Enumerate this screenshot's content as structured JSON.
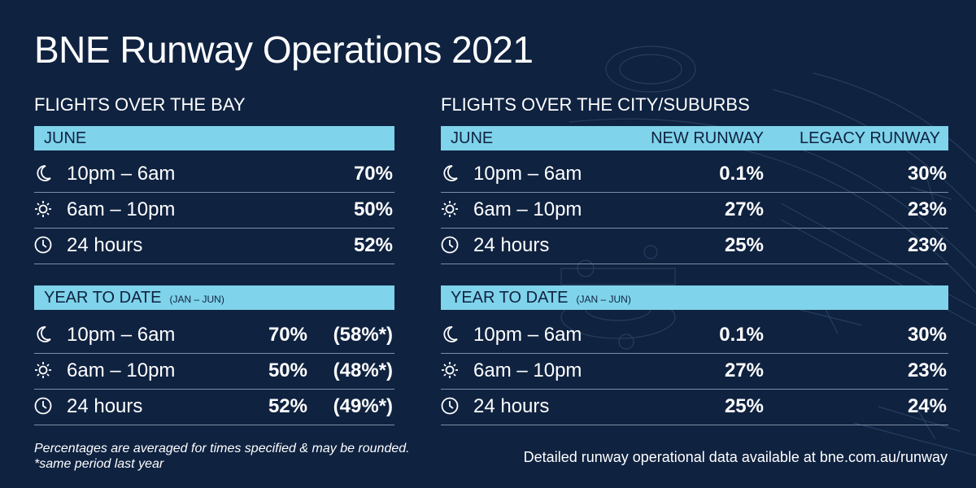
{
  "title": "BNE Runway Operations 2021",
  "bay": {
    "heading": "FLIGHTS OVER THE BAY",
    "june": {
      "label": "JUNE",
      "rows": [
        {
          "time": "10pm – 6am",
          "value": "70%"
        },
        {
          "time": "6am – 10pm",
          "value": "50%"
        },
        {
          "time": "24 hours",
          "value": "52%"
        }
      ]
    },
    "ytd": {
      "label": "YEAR TO DATE",
      "sub": "(JAN – JUN)",
      "rows": [
        {
          "time": "10pm – 6am",
          "value": "70%",
          "prev": "(58%*)"
        },
        {
          "time": "6am – 10pm",
          "value": "50%",
          "prev": "(48%*)"
        },
        {
          "time": "24 hours",
          "value": "52%",
          "prev": "(49%*)"
        }
      ]
    }
  },
  "city": {
    "heading": "FLIGHTS OVER THE CITY/SUBURBS",
    "col_new": "NEW RUNWAY",
    "col_legacy": "LEGACY RUNWAY",
    "june": {
      "label": "JUNE",
      "rows": [
        {
          "time": "10pm – 6am",
          "new": "0.1%",
          "legacy": "30%"
        },
        {
          "time": "6am – 10pm",
          "new": "27%",
          "legacy": "23%"
        },
        {
          "time": "24 hours",
          "new": "25%",
          "legacy": "23%"
        }
      ]
    },
    "ytd": {
      "label": "YEAR TO DATE",
      "sub": "(JAN – JUN)",
      "rows": [
        {
          "time": "10pm – 6am",
          "new": "0.1%",
          "legacy": "30%"
        },
        {
          "time": "6am – 10pm",
          "new": "27%",
          "legacy": "23%"
        },
        {
          "time": "24 hours",
          "new": "25%",
          "legacy": "24%"
        }
      ]
    }
  },
  "footnote": {
    "line1": "Percentages are averaged for times specified & may be rounded.",
    "line2": "*same period last year"
  },
  "data_link": "Detailed runway operational data available at  bne.com.au/runway",
  "icons": {
    "night": "moon-icon",
    "day": "sun-icon",
    "all_day": "clock-icon"
  },
  "colors": {
    "background": "#0f2240",
    "band": "#7fd3ea",
    "text": "#ffffff"
  }
}
